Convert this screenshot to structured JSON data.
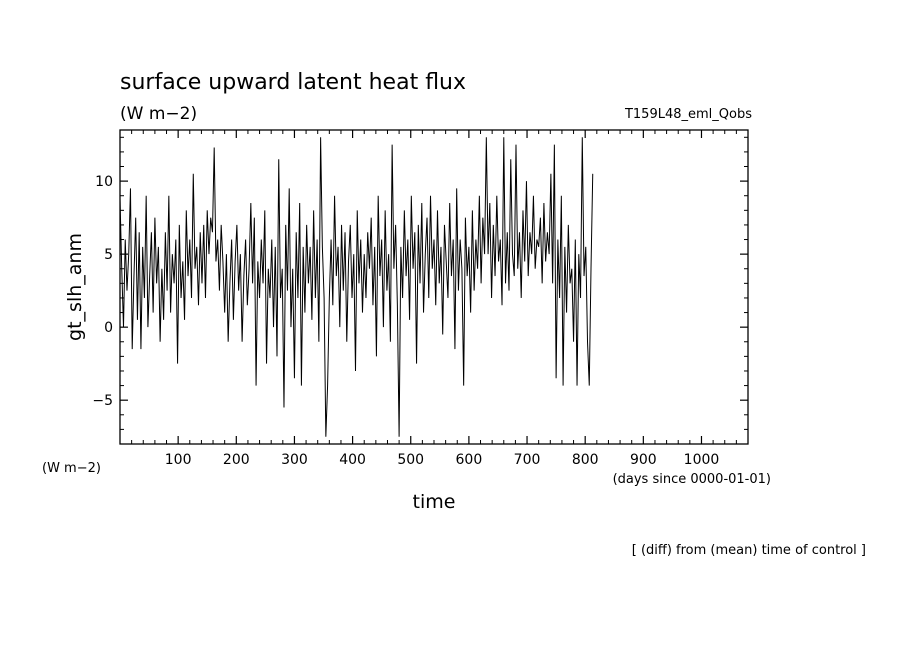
{
  "chart_data": {
    "type": "line",
    "title": "surface upward latent heat flux",
    "units": "(W m−2)",
    "run_name": "T159L48_eml_Qobs",
    "ylabel": "gt_slh_anm",
    "y_unit_label": "(W m−2)",
    "xlabel": "time",
    "x_unit_label": "(days since 0000-01-01)",
    "footnote": "[ (diff) from (mean) time of control ]",
    "xlim": [
      0,
      1080
    ],
    "ylim": [
      -8,
      13.5
    ],
    "x_ticks": [
      100,
      200,
      300,
      400,
      500,
      600,
      700,
      800,
      900,
      1000
    ],
    "y_ticks": [
      -5,
      0,
      5,
      10
    ],
    "grid": false,
    "line_color": "#000000",
    "series": [
      {
        "x_start": 0,
        "x_step": 3,
        "values": [
          8.8,
          4.0,
          0.0,
          6.0,
          2.5,
          5.0,
          9.5,
          -1.5,
          3.5,
          7.5,
          0.5,
          6.5,
          -1.5,
          5.5,
          2.0,
          9.0,
          0.0,
          3.5,
          6.5,
          1.0,
          7.5,
          3.0,
          5.5,
          -1.0,
          4.0,
          0.5,
          6.5,
          2.5,
          9.0,
          1.0,
          5.0,
          3.0,
          6.0,
          -2.5,
          7.0,
          2.0,
          4.5,
          0.5,
          8.0,
          3.5,
          6.0,
          2.0,
          10.5,
          4.0,
          5.5,
          1.5,
          6.5,
          3.0,
          7.0,
          2.0,
          8.0,
          5.0,
          7.5,
          6.5,
          12.3,
          4.5,
          6.0,
          2.5,
          7.0,
          4.5,
          1.0,
          5.0,
          -1.0,
          3.0,
          6.0,
          0.5,
          4.5,
          7.0,
          2.5,
          5.0,
          -1.0,
          3.5,
          6.0,
          1.5,
          4.0,
          8.5,
          3.0,
          7.5,
          -4.0,
          4.5,
          2.0,
          6.0,
          3.0,
          8.0,
          -2.5,
          4.0,
          2.0,
          6.0,
          0.0,
          5.5,
          -2.0,
          11.5,
          2.0,
          4.0,
          -5.5,
          7.0,
          2.5,
          9.5,
          0.0,
          4.0,
          -3.5,
          6.5,
          2.0,
          8.5,
          -4.0,
          5.5,
          1.0,
          7.0,
          3.0,
          5.5,
          0.5,
          8.0,
          2.0,
          6.0,
          -1.0,
          13.0,
          5.5,
          2.0,
          -7.5,
          -4.0,
          2.0,
          6.0,
          1.5,
          9.0,
          3.5,
          5.5,
          0.0,
          7.0,
          2.5,
          6.5,
          -1.0,
          4.5,
          7.0,
          2.0,
          5.0,
          -3.0,
          8.0,
          3.0,
          6.0,
          1.0,
          5.0,
          2.0,
          6.5,
          4.0,
          7.5,
          1.5,
          5.5,
          -2.0,
          9.0,
          3.5,
          6.0,
          0.0,
          8.0,
          2.5,
          5.0,
          -1.0,
          12.5,
          4.0,
          7.0,
          1.5,
          -7.5,
          5.5,
          2.0,
          8.0,
          3.5,
          6.0,
          0.5,
          9.0,
          4.0,
          6.5,
          -2.5,
          7.0,
          3.0,
          8.5,
          1.0,
          5.0,
          7.5,
          2.0,
          9.0,
          4.0,
          6.0,
          1.5,
          8.0,
          3.0,
          5.5,
          -0.5,
          7.0,
          4.5,
          2.0,
          8.5,
          3.5,
          6.0,
          -1.5,
          9.5,
          2.5,
          6.0,
          4.0,
          -4.0,
          7.5,
          3.5,
          5.5,
          1.0,
          8.0,
          2.5,
          6.0,
          4.0,
          9.0,
          3.0,
          7.5,
          5.0,
          13.0,
          5.0,
          8.5,
          2.0,
          7.0,
          3.5,
          9.0,
          4.5,
          6.0,
          1.5,
          13.0,
          3.0,
          6.5,
          2.5,
          11.5,
          5.0,
          3.5,
          12.5,
          4.0,
          6.5,
          2.0,
          8.0,
          4.5,
          10.0,
          3.5,
          6.5,
          5.0,
          9.0,
          4.0,
          6.0,
          5.5,
          7.5,
          3.0,
          8.5,
          4.5,
          6.5,
          5.0,
          10.5,
          3.0,
          12.5,
          -3.5,
          6.0,
          2.0,
          9.0,
          -4.0,
          5.5,
          1.0,
          7.0,
          3.0,
          4.0,
          -1.0,
          6.0,
          -4.0,
          5.0,
          2.0,
          13.0,
          3.5,
          5.5,
          -1.0,
          -4.0,
          4.0,
          10.5
        ]
      }
    ]
  }
}
